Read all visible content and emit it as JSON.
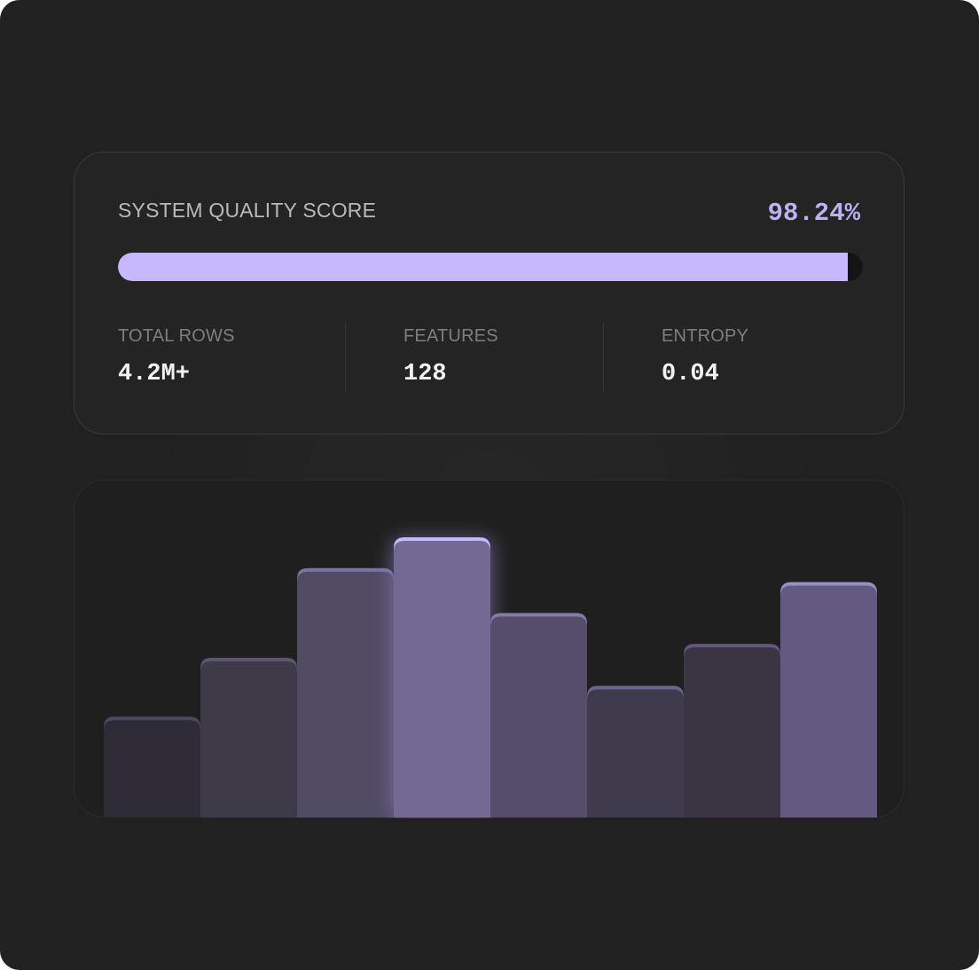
{
  "score": {
    "title": "SYSTEM QUALITY SCORE",
    "value_text": "98.24%",
    "progress": 0.98
  },
  "stats": [
    {
      "label": "TOTAL ROWS",
      "value": "4.2M+"
    },
    {
      "label": "FEATURES",
      "value": "128"
    },
    {
      "label": "ENTROPY",
      "value": "0.04"
    }
  ],
  "colors": {
    "accent": "#c6b8fa",
    "background": "#212121"
  },
  "chart_data": {
    "type": "bar",
    "title": "",
    "xlabel": "",
    "ylabel": "",
    "ylim": [
      0,
      100
    ],
    "categories": [
      "",
      "",
      "",
      "",
      "",
      "",
      "",
      ""
    ],
    "values": [
      36,
      57,
      89,
      100,
      73,
      47,
      62,
      84
    ],
    "highlight_index": 3,
    "colors": [
      "#2e2b36",
      "#3e3a48",
      "#524b64",
      "#746992",
      "#554d69",
      "#403b4c",
      "#3a3443",
      "#645981"
    ],
    "cap_colors": [
      "#4d4763",
      "#5d5573",
      "#7d72a1",
      "#c6b8fa",
      "#857aa8",
      "#6d6590",
      "#61587e",
      "#9a8fc4"
    ]
  }
}
